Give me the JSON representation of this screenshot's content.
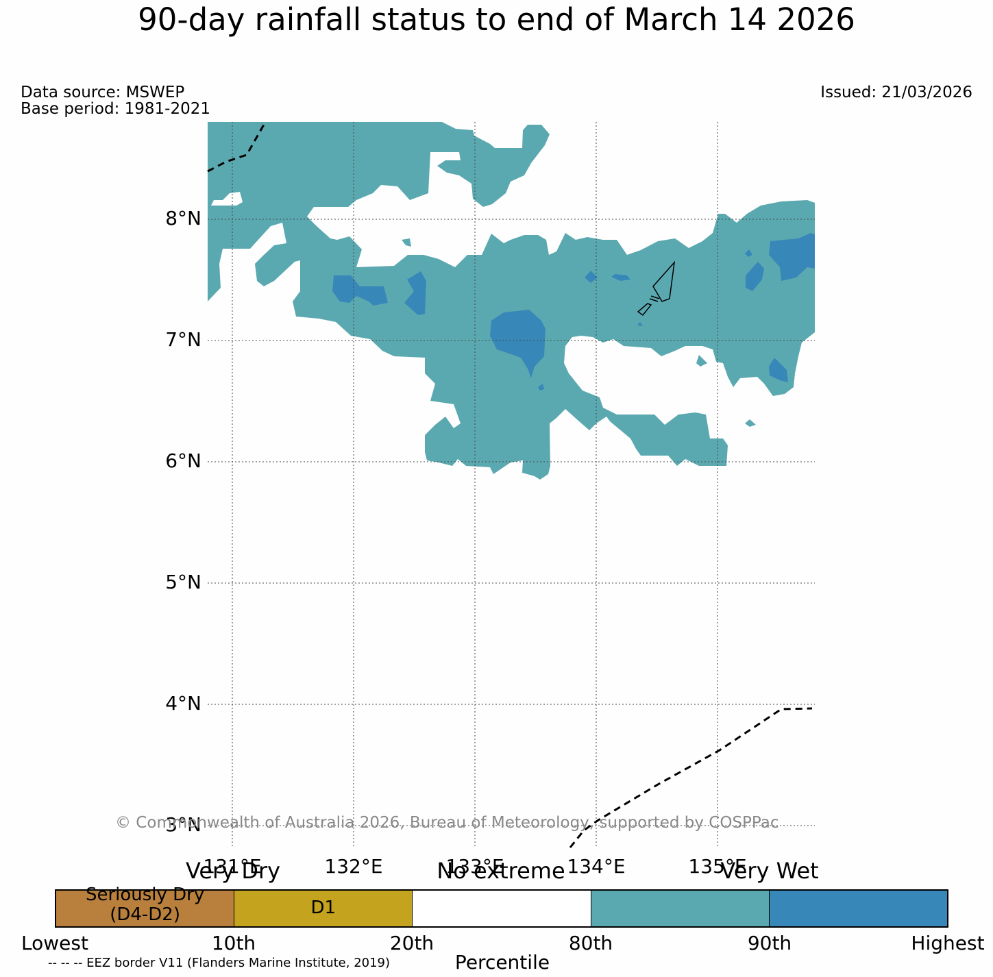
{
  "title": "90-day rainfall status to end of March 14 2026",
  "data_source": "Data source: MSWEP",
  "base_period": "Base period: 1981-2021",
  "issued": "Issued: 21/03/2026",
  "copyright": "© Commonwealth of Australia 2026, Bureau of Meteorology, supported by COSPPac",
  "map": {
    "lat_labels": [
      "8°N",
      "7°N",
      "6°N",
      "5°N",
      "4°N",
      "3°N"
    ],
    "lon_labels": [
      "131°E",
      "132°E",
      "133°E",
      "134°E",
      "135°E"
    ],
    "extent": {
      "lon_min": 130.8,
      "lon_max": 135.8,
      "lat_min": 2.8,
      "lat_max": 8.8
    },
    "colors": {
      "very_much_above": "#5ba9b0",
      "highest": "#3787b9",
      "border": "#000000"
    }
  },
  "legend": {
    "categories": {
      "very_dry": "Very Dry",
      "no_extreme": "No extreme",
      "very_wet": "Very Wet"
    },
    "segments": [
      {
        "label_line1": "Seriously Dry",
        "label_line2": "(D4-D2)",
        "color": "#b8803c"
      },
      {
        "label_line1": "D1",
        "label_line2": "",
        "color": "#c4a41e"
      },
      {
        "label_line1": "",
        "label_line2": "",
        "color": "#ffffff"
      },
      {
        "label_line1": "",
        "label_line2": "",
        "color": "#5ba9b0"
      },
      {
        "label_line1": "",
        "label_line2": "",
        "color": "#3787b9"
      }
    ],
    "ticks": [
      "Lowest",
      "10th",
      "20th",
      "80th",
      "90th",
      "Highest"
    ],
    "axis_label": "Percentile"
  },
  "eez_note": "-- -- -- EEZ border V11 (Flanders Marine Institute, 2019)"
}
